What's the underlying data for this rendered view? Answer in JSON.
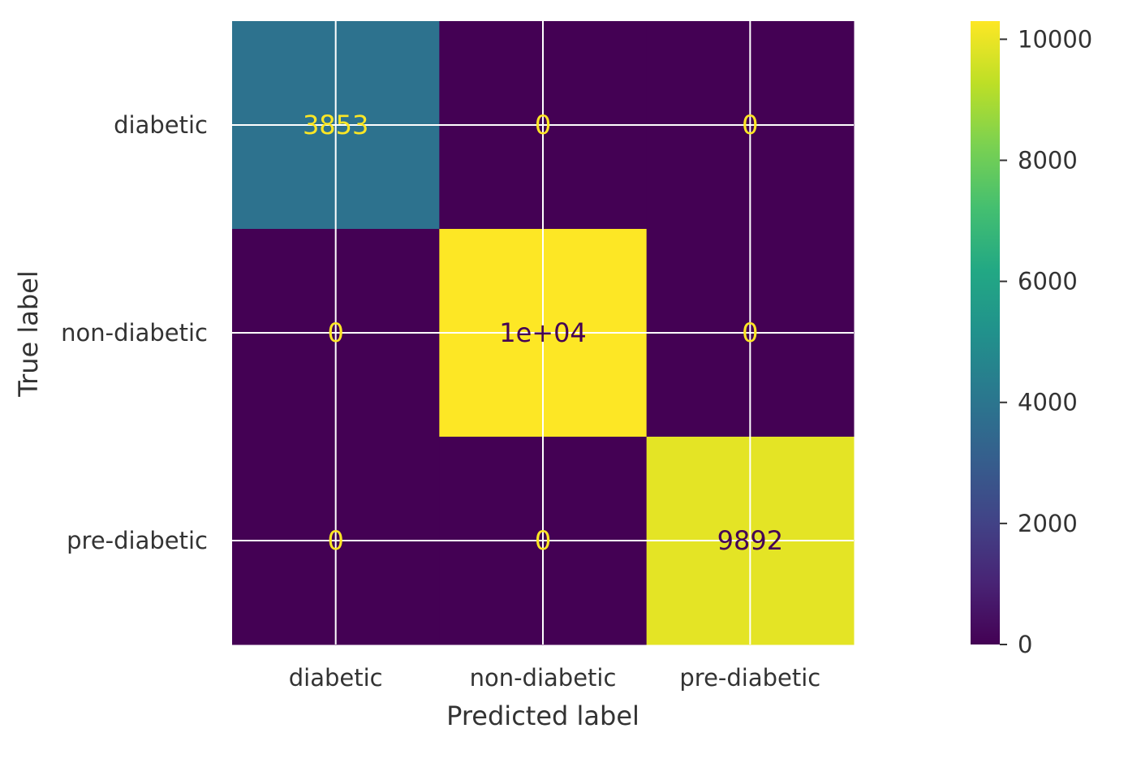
{
  "chart_data": {
    "type": "heatmap",
    "title": "",
    "xlabel": "Predicted label",
    "ylabel": "True label",
    "x_categories": [
      "diabetic",
      "non-diabetic",
      "pre-diabetic"
    ],
    "y_categories": [
      "diabetic",
      "non-diabetic",
      "pre-diabetic"
    ],
    "values": [
      [
        3853,
        0,
        0
      ],
      [
        0,
        10300,
        0
      ],
      [
        0,
        0,
        9892
      ]
    ],
    "cell_labels": [
      [
        "3853",
        "0",
        "0"
      ],
      [
        "0",
        "1e+04",
        "0"
      ],
      [
        "0",
        "0",
        "9892"
      ]
    ],
    "colormap": "viridis",
    "colorbar": {
      "range": [
        0,
        10300
      ],
      "ticks": [
        0,
        2000,
        4000,
        6000,
        8000,
        10000
      ],
      "tick_labels": [
        "0",
        "2000",
        "4000",
        "6000",
        "8000",
        "10000"
      ]
    },
    "grid": true,
    "colors": {
      "grid": "#ffffff",
      "text_light": "#fde725",
      "text_dark": "#440154"
    }
  }
}
